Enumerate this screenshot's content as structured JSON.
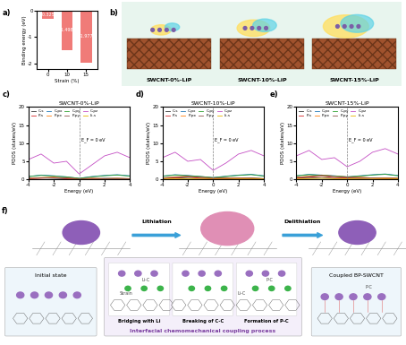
{
  "chart_data": [
    {
      "type": "bar",
      "panel": "a)",
      "categories": [
        "0",
        "10",
        "15"
      ],
      "values": [
        -0.325,
        -1.498,
        -1.977
      ],
      "x_label": "Strain (%)",
      "y_label": "Binding energy (eV)",
      "color": "#f07b78",
      "ylim": [
        -2.2,
        0
      ],
      "yticks": [
        -2,
        -1,
        0
      ],
      "data_labels": true
    },
    {
      "type": "line",
      "panel": "c)",
      "title": "SWCNT-0%-LiP",
      "x": [
        -4,
        -3,
        -2,
        -1,
        0,
        1,
        2,
        3,
        4
      ],
      "xlim": [
        -4,
        4
      ],
      "xticks": [
        -4,
        -2,
        0,
        2,
        4
      ],
      "ylim": [
        0,
        20
      ],
      "yticks": [
        0,
        5,
        10,
        15,
        20
      ],
      "x_label": "Energy (eV)",
      "y_label": "PDOS (states/eV)",
      "annotation": "E_F = 0 eV",
      "fermi_energy": 0,
      "legend": "upper left",
      "series": [
        {
          "name": "C-s",
          "color": "#333333",
          "values": [
            0.3,
            0.4,
            0.3,
            0.2,
            0.1,
            0.2,
            0.3,
            0.3,
            0.2
          ]
        },
        {
          "name": "P-s",
          "color": "#d62728",
          "values": [
            0.2,
            0.3,
            0.5,
            0.2,
            0.1,
            0.1,
            0.2,
            0.1,
            0.1
          ]
        },
        {
          "name": "C-px",
          "color": "#1f77b4",
          "values": [
            0.8,
            1.2,
            1.0,
            0.7,
            0.3,
            0.8,
            1.1,
            1.3,
            1.0
          ]
        },
        {
          "name": "P-px",
          "color": "#ff7f0e",
          "values": [
            0.3,
            0.5,
            0.6,
            0.4,
            0.2,
            0.3,
            0.2,
            0.3,
            0.2
          ]
        },
        {
          "name": "C-py",
          "color": "#2ca02c",
          "values": [
            0.8,
            1.1,
            0.9,
            0.7,
            0.3,
            0.7,
            1.0,
            1.2,
            0.9
          ]
        },
        {
          "name": "P-py",
          "color": "#8c564b",
          "values": [
            0.3,
            0.4,
            0.5,
            0.4,
            0.2,
            0.3,
            0.2,
            0.2,
            0.2
          ]
        },
        {
          "name": "C-pz",
          "color": "#c44ec4",
          "values": [
            5.5,
            7.0,
            4.5,
            5.0,
            1.5,
            4.0,
            6.5,
            7.5,
            6.0
          ]
        },
        {
          "name": "Li-s",
          "color": "#e8b400",
          "values": [
            0.1,
            0.1,
            0.1,
            0.1,
            0.1,
            0.1,
            0.1,
            0.1,
            0.1
          ]
        }
      ]
    },
    {
      "type": "line",
      "panel": "d)",
      "title": "SWCNT-10%-LiP",
      "x": [
        -4,
        -3,
        -2,
        -1,
        0,
        1,
        2,
        3,
        4
      ],
      "xlim": [
        -4,
        4
      ],
      "xticks": [
        -4,
        -2,
        0,
        2,
        4
      ],
      "ylim": [
        0,
        20
      ],
      "yticks": [
        0,
        5,
        10,
        15,
        20
      ],
      "x_label": "Energy (eV)",
      "y_label": "PDOS (states/eV)",
      "annotation": "E_F = 0 eV",
      "fermi_energy": 0,
      "legend": "upper left",
      "series": [
        {
          "name": "C-s",
          "color": "#333333",
          "values": [
            0.3,
            0.5,
            0.3,
            0.3,
            0.2,
            0.2,
            0.3,
            0.4,
            0.2
          ]
        },
        {
          "name": "P-s",
          "color": "#d62728",
          "values": [
            0.3,
            0.4,
            0.7,
            0.3,
            0.2,
            0.2,
            0.3,
            0.2,
            0.1
          ]
        },
        {
          "name": "C-px",
          "color": "#1f77b4",
          "values": [
            0.9,
            1.3,
            1.1,
            0.8,
            0.5,
            0.9,
            1.2,
            1.4,
            1.0
          ]
        },
        {
          "name": "P-px",
          "color": "#ff7f0e",
          "values": [
            0.4,
            0.7,
            0.9,
            0.6,
            0.4,
            0.5,
            0.3,
            0.3,
            0.2
          ]
        },
        {
          "name": "C-py",
          "color": "#2ca02c",
          "values": [
            0.9,
            1.2,
            1.0,
            0.8,
            0.5,
            0.8,
            1.1,
            1.3,
            0.9
          ]
        },
        {
          "name": "P-py",
          "color": "#8c564b",
          "values": [
            0.4,
            0.6,
            0.8,
            0.6,
            0.4,
            0.4,
            0.3,
            0.3,
            0.2
          ]
        },
        {
          "name": "C-pz",
          "color": "#c44ec4",
          "values": [
            6.0,
            7.5,
            5.0,
            5.5,
            2.5,
            4.5,
            7.0,
            8.0,
            6.5
          ]
        },
        {
          "name": "Li-s",
          "color": "#e8b400",
          "values": [
            0.1,
            0.2,
            0.2,
            0.1,
            0.1,
            0.1,
            0.1,
            0.1,
            0.1
          ]
        }
      ]
    },
    {
      "type": "line",
      "panel": "e)",
      "title": "SWCNT-15%-LiP",
      "x": [
        -4,
        -3,
        -2,
        -1,
        0,
        1,
        2,
        3,
        4
      ],
      "xlim": [
        -4,
        4
      ],
      "xticks": [
        -4,
        -2,
        0,
        2,
        4
      ],
      "ylim": [
        0,
        20
      ],
      "yticks": [
        0,
        5,
        10,
        15,
        20
      ],
      "x_label": "Energy (eV)",
      "y_label": "PDOS (states/eV)",
      "annotation": "E_F = 0 eV",
      "fermi_energy": 0,
      "legend": "upper left",
      "series": [
        {
          "name": "C-s",
          "color": "#333333",
          "values": [
            0.4,
            0.5,
            0.4,
            0.3,
            0.3,
            0.3,
            0.4,
            0.4,
            0.3
          ]
        },
        {
          "name": "P-s",
          "color": "#d62728",
          "values": [
            0.4,
            0.6,
            0.9,
            0.5,
            0.4,
            0.3,
            0.3,
            0.2,
            0.2
          ]
        },
        {
          "name": "C-px",
          "color": "#1f77b4",
          "values": [
            1.0,
            1.4,
            1.2,
            1.0,
            0.7,
            1.0,
            1.3,
            1.5,
            1.1
          ]
        },
        {
          "name": "P-px",
          "color": "#ff7f0e",
          "values": [
            0.6,
            0.9,
            1.2,
            0.9,
            0.7,
            0.6,
            0.4,
            0.4,
            0.3
          ]
        },
        {
          "name": "C-py",
          "color": "#2ca02c",
          "values": [
            1.0,
            1.3,
            1.1,
            0.9,
            0.7,
            0.9,
            1.2,
            1.4,
            1.0
          ]
        },
        {
          "name": "P-py",
          "color": "#8c564b",
          "values": [
            0.5,
            0.8,
            1.1,
            0.8,
            0.6,
            0.5,
            0.4,
            0.3,
            0.3
          ]
        },
        {
          "name": "C-pz",
          "color": "#c44ec4",
          "values": [
            6.5,
            8.0,
            5.5,
            6.0,
            3.5,
            5.0,
            7.5,
            8.5,
            7.0
          ]
        },
        {
          "name": "Li-s",
          "color": "#e8b400",
          "values": [
            0.2,
            0.2,
            0.3,
            0.2,
            0.2,
            0.1,
            0.1,
            0.1,
            0.1
          ]
        }
      ]
    }
  ],
  "diagram": {
    "b": {
      "panel": "b)",
      "labels": [
        "SWCNT-0%-LiP",
        "SWCNT-10%-LiP",
        "SWCNT-15%-LiP"
      ]
    },
    "f": {
      "panel": "f)",
      "steps": [
        "Lithiation",
        "Delithiation"
      ],
      "states": [
        "Initial state",
        "Coupled BP-SWCNT"
      ],
      "substeps": [
        "Bridging with Li",
        "Breaking of C-C",
        "Formation of P-C"
      ],
      "process": "Interfacial chemomechanical coupling process",
      "strain": "Strain",
      "li_c": "Li-C",
      "p_c": "P-C"
    }
  }
}
